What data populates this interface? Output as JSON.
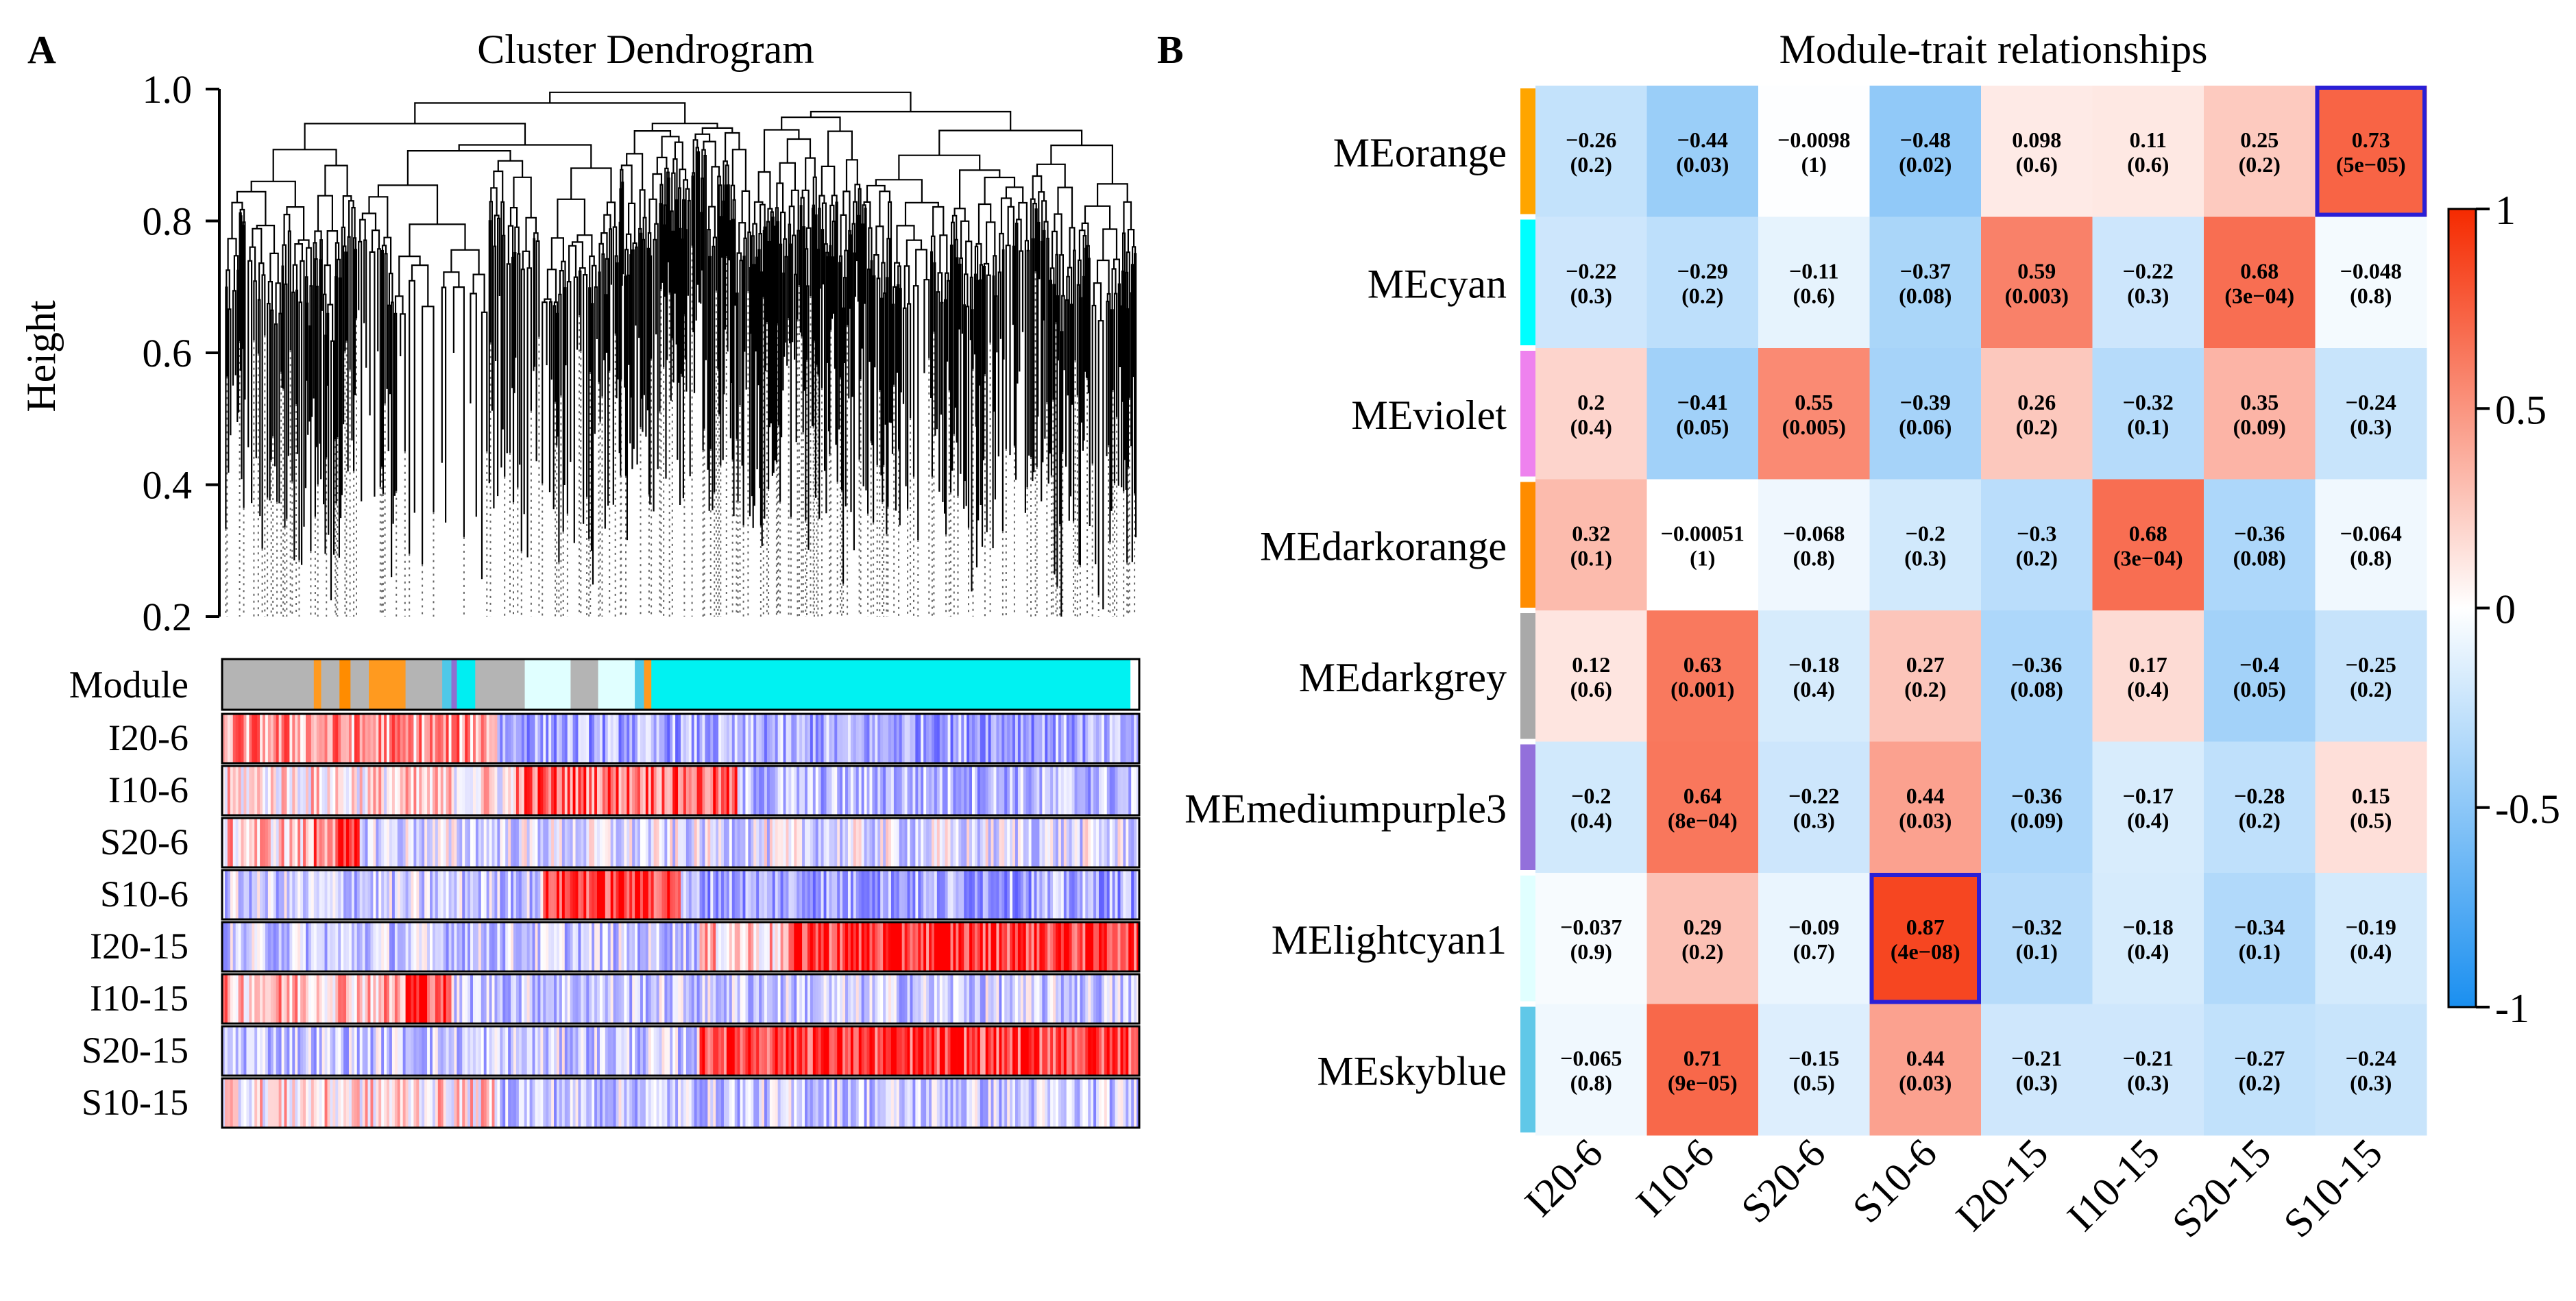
{
  "panel_a": {
    "label": "A",
    "title": "Cluster Dendrogram",
    "ylabel": "Height",
    "ticks": [
      "0.2",
      "0.4",
      "0.6",
      "0.8",
      "1.0"
    ],
    "module_row_label": "Module",
    "trait_rows": [
      "I20-6",
      "I10-6",
      "S20-6",
      "S10-6",
      "I20-15",
      "I10-15",
      "S20-15",
      "S10-15"
    ],
    "module_segments": [
      {
        "color": "#b4b4b4",
        "fraction": 0.1
      },
      {
        "color": "#ff9a1f",
        "fraction": 0.008
      },
      {
        "color": "#b4b4b4",
        "fraction": 0.02
      },
      {
        "color": "#ff8c00",
        "fraction": 0.012
      },
      {
        "color": "#b4b4b4",
        "fraction": 0.02
      },
      {
        "color": "#ff9a1f",
        "fraction": 0.04
      },
      {
        "color": "#b4b4b4",
        "fraction": 0.04
      },
      {
        "color": "#4fc8e8",
        "fraction": 0.01
      },
      {
        "color": "#8f6fd0",
        "fraction": 0.006
      },
      {
        "color": "#00eef2",
        "fraction": 0.02
      },
      {
        "color": "#b4b4b4",
        "fraction": 0.054
      },
      {
        "color": "#e0ffff",
        "fraction": 0.05
      },
      {
        "color": "#b4b4b4",
        "fraction": 0.03
      },
      {
        "color": "#e0ffff",
        "fraction": 0.04
      },
      {
        "color": "#4fc8e8",
        "fraction": 0.01
      },
      {
        "color": "#ff9a1f",
        "fraction": 0.008
      },
      {
        "color": "#00f2f2",
        "fraction": 0.522
      }
    ]
  },
  "chart_data": {
    "type": "heatmap",
    "panel_label": "B",
    "title": "Module-trait relationships",
    "modules": [
      "MEorange",
      "MEcyan",
      "MEviolet",
      "MEdarkorange",
      "MEdarkgrey",
      "MEmediumpurple3",
      "MElightcyan1",
      "MEskyblue"
    ],
    "module_colors": [
      "#ffa500",
      "#00ffff",
      "#ee82ee",
      "#ff8c00",
      "#a9a9a9",
      "#9370db",
      "#e0ffff",
      "#60c8e8"
    ],
    "traits": [
      "I20-6",
      "I10-6",
      "S20-6",
      "S10-6",
      "I20-15",
      "I10-15",
      "S20-15",
      "S10-15"
    ],
    "values": [
      [
        -0.26,
        -0.44,
        -0.0098,
        -0.48,
        0.098,
        0.11,
        0.25,
        0.73
      ],
      [
        -0.22,
        -0.29,
        -0.11,
        -0.37,
        0.59,
        -0.22,
        0.68,
        -0.048
      ],
      [
        0.2,
        -0.41,
        0.55,
        -0.39,
        0.26,
        -0.32,
        0.35,
        -0.24
      ],
      [
        0.32,
        -0.00051,
        -0.068,
        -0.2,
        -0.3,
        0.68,
        -0.36,
        -0.064
      ],
      [
        0.12,
        0.63,
        -0.18,
        0.27,
        -0.36,
        0.17,
        -0.4,
        -0.25
      ],
      [
        -0.2,
        0.64,
        -0.22,
        0.44,
        -0.36,
        -0.17,
        -0.28,
        0.15
      ],
      [
        -0.037,
        0.29,
        -0.09,
        0.87,
        -0.32,
        -0.18,
        -0.34,
        -0.19
      ],
      [
        -0.065,
        0.71,
        -0.15,
        0.44,
        -0.21,
        -0.21,
        -0.27,
        -0.24
      ]
    ],
    "labels": [
      [
        "−0.26",
        "−0.44",
        "−0.0098",
        "−0.48",
        "0.098",
        "0.11",
        "0.25",
        "0.73"
      ],
      [
        "−0.22",
        "−0.29",
        "−0.11",
        "−0.37",
        "0.59",
        "−0.22",
        "0.68",
        "−0.048"
      ],
      [
        "0.2",
        "−0.41",
        "0.55",
        "−0.39",
        "0.26",
        "−0.32",
        "0.35",
        "−0.24"
      ],
      [
        "0.32",
        "−0.00051",
        "−0.068",
        "−0.2",
        "−0.3",
        "0.68",
        "−0.36",
        "−0.064"
      ],
      [
        "0.12",
        "0.63",
        "−0.18",
        "0.27",
        "−0.36",
        "0.17",
        "−0.4",
        "−0.25"
      ],
      [
        "−0.2",
        "0.64",
        "−0.22",
        "0.44",
        "−0.36",
        "−0.17",
        "−0.28",
        "0.15"
      ],
      [
        "−0.037",
        "0.29",
        "−0.09",
        "0.87",
        "−0.32",
        "−0.18",
        "−0.34",
        "−0.19"
      ],
      [
        "−0.065",
        "0.71",
        "−0.15",
        "0.44",
        "−0.21",
        "−0.21",
        "−0.27",
        "−0.24"
      ]
    ],
    "pvalues": [
      [
        "(0.2)",
        "(0.03)",
        "(1)",
        "(0.02)",
        "(0.6)",
        "(0.6)",
        "(0.2)",
        "(5e−05)"
      ],
      [
        "(0.3)",
        "(0.2)",
        "(0.6)",
        "(0.08)",
        "(0.003)",
        "(0.3)",
        "(3e−04)",
        "(0.8)"
      ],
      [
        "(0.4)",
        "(0.05)",
        "(0.005)",
        "(0.06)",
        "(0.2)",
        "(0.1)",
        "(0.09)",
        "(0.3)"
      ],
      [
        "(0.1)",
        "(1)",
        "(0.8)",
        "(0.3)",
        "(0.2)",
        "(3e−04)",
        "(0.08)",
        "(0.8)"
      ],
      [
        "(0.6)",
        "(0.001)",
        "(0.4)",
        "(0.2)",
        "(0.08)",
        "(0.4)",
        "(0.05)",
        "(0.2)"
      ],
      [
        "(0.4)",
        "(8e−04)",
        "(0.3)",
        "(0.03)",
        "(0.09)",
        "(0.4)",
        "(0.2)",
        "(0.5)"
      ],
      [
        "(0.9)",
        "(0.2)",
        "(0.7)",
        "(4e−08)",
        "(0.1)",
        "(0.4)",
        "(0.1)",
        "(0.4)"
      ],
      [
        "(0.8)",
        "(9e−05)",
        "(0.5)",
        "(0.03)",
        "(0.3)",
        "(0.3)",
        "(0.2)",
        "(0.3)"
      ]
    ],
    "highlighted": [
      [
        0,
        7
      ],
      [
        6,
        3
      ]
    ],
    "highlight_color": "#2a1fd6",
    "color_scale": {
      "min": -1,
      "max": 1,
      "low": "#1a8ff0",
      "mid": "#ffffff",
      "high": "#f52a00"
    },
    "colorbar_ticks": [
      "1",
      "0.5",
      "0",
      "-0.5",
      "-1"
    ],
    "colorbar_tick_values": [
      1,
      0.5,
      0,
      -0.5,
      -1
    ]
  }
}
